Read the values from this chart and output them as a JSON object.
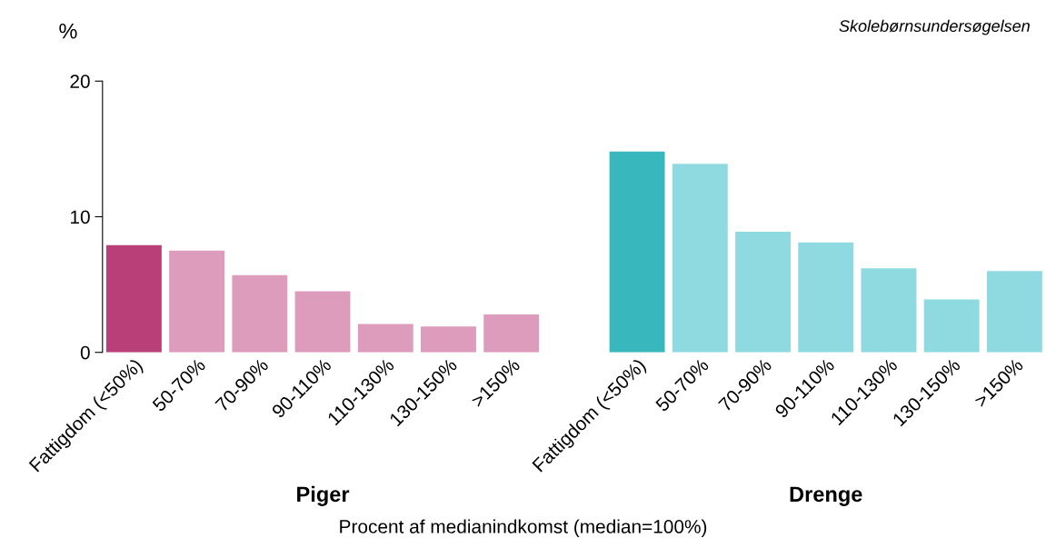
{
  "chart_data": {
    "type": "bar",
    "ylabel": "%",
    "xlabel": "Procent af medianindkomst (median=100%)",
    "categories": [
      "Fattigdom (<50%)",
      "50-70%",
      "70-90%",
      "90-110%",
      "110-130%",
      "130-150%",
      ">150%",
      null,
      "Fattigdom (<50%)",
      "50-70%",
      "70-90%",
      "90-110%",
      "110-130%",
      "130-150%",
      ">150%"
    ],
    "values": [
      7.9,
      7.5,
      5.7,
      4.5,
      2.1,
      1.9,
      2.8,
      null,
      14.8,
      13.9,
      8.9,
      8.1,
      6.2,
      3.9,
      6.0
    ],
    "colors": [
      "#b83f78",
      "#de9cbd",
      "#de9cbd",
      "#de9cbd",
      "#de9cbd",
      "#de9cbd",
      "#de9cbd",
      null,
      "#38b7bd",
      "#8fdae0",
      "#8fdae0",
      "#8fdae0",
      "#8fdae0",
      "#8fdae0",
      "#8fdae0"
    ],
    "ylim": [
      0,
      20
    ],
    "yticks": [
      0,
      10,
      20
    ],
    "grid": false,
    "annotations": [
      "Piger",
      "Drenge",
      "Skolebørnsundersøgelsen"
    ]
  }
}
